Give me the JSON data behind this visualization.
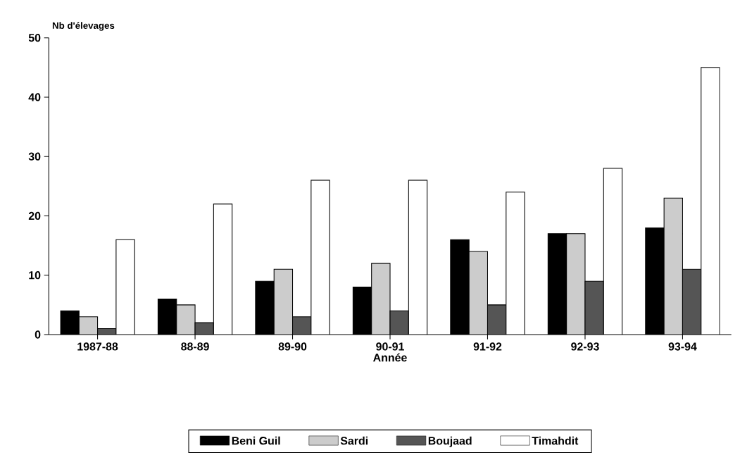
{
  "chart_data": {
    "type": "bar",
    "ylabel": "Nb d'élevages",
    "xlabel": "Année",
    "categories": [
      "1987-88",
      "88-89",
      "89-90",
      "90-91",
      "91-92",
      "92-93",
      "93-94"
    ],
    "series": [
      {
        "name": "Beni Guil",
        "color": "#000000",
        "values": [
          4,
          6,
          9,
          8,
          16,
          17,
          18
        ]
      },
      {
        "name": "Sardi",
        "color": "#cccccc",
        "values": [
          3,
          5,
          11,
          12,
          14,
          17,
          23
        ]
      },
      {
        "name": "Boujaad",
        "color": "#555555",
        "values": [
          1,
          2,
          3,
          4,
          5,
          9,
          11
        ]
      },
      {
        "name": "Timahdit",
        "color": "#ffffff",
        "values": [
          16,
          22,
          26,
          26,
          24,
          28,
          45
        ]
      }
    ],
    "ylim": [
      0,
      50
    ],
    "yticks": [
      0,
      10,
      20,
      30,
      40,
      50
    ],
    "legend": "bottom",
    "grid": false
  }
}
